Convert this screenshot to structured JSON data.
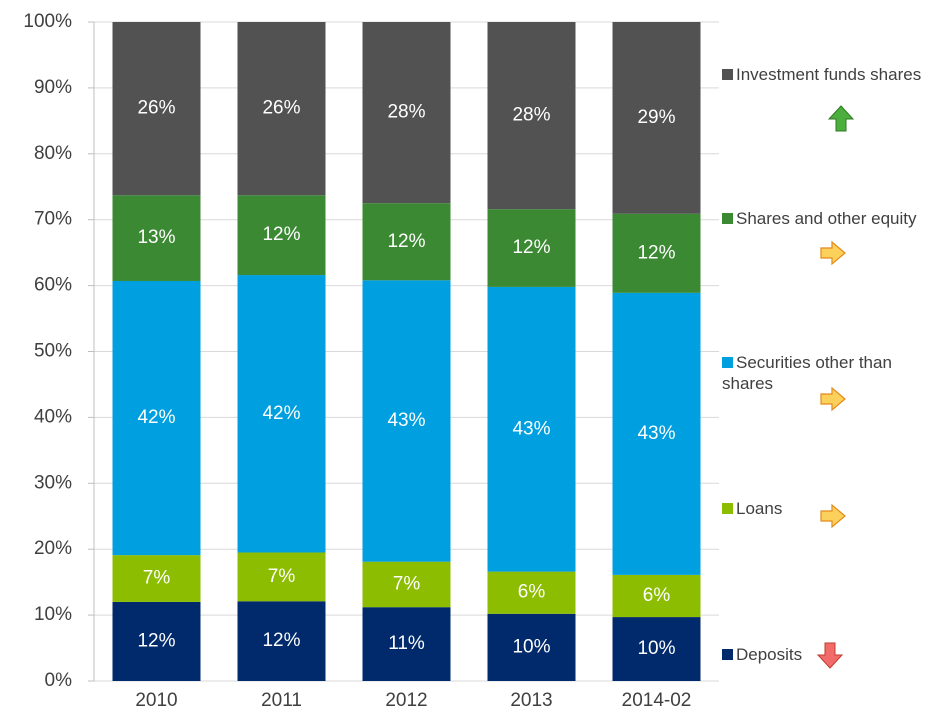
{
  "chart_data": {
    "type": "stacked_bar",
    "categories": [
      "2010",
      "2011",
      "2012",
      "2013",
      "2014-02"
    ],
    "series": [
      {
        "name": "Deposits",
        "color": "#002a6c",
        "values": [
          12.0,
          12.1,
          11.2,
          10.2,
          9.7
        ],
        "value_labels": [
          "12%",
          "12%",
          "11%",
          "10%",
          "10%"
        ]
      },
      {
        "name": "Loans",
        "color": "#8cbd00",
        "values": [
          7.1,
          7.4,
          6.9,
          6.4,
          6.4
        ],
        "value_labels": [
          "7%",
          "7%",
          "7%",
          "6%",
          "6%"
        ]
      },
      {
        "name": "Securities other than shares",
        "color": "#009fdf",
        "values": [
          41.6,
          42.1,
          42.7,
          43.2,
          42.8
        ],
        "value_labels": [
          "42%",
          "42%",
          "43%",
          "43%",
          "43%"
        ]
      },
      {
        "name": "Shares and other equity",
        "color": "#3b8a33",
        "values": [
          13.0,
          12.1,
          11.7,
          11.8,
          12.0
        ],
        "value_labels": [
          "13%",
          "12%",
          "12%",
          "12%",
          "12%"
        ]
      },
      {
        "name": "Investment funds shares",
        "color": "#525252",
        "values": [
          26.3,
          26.3,
          27.5,
          28.4,
          29.1
        ],
        "value_labels": [
          "26%",
          "26%",
          "28%",
          "28%",
          "29%"
        ]
      }
    ],
    "ylim": [
      0,
      100
    ],
    "yticks": [
      {
        "value": 0,
        "label": "0%"
      },
      {
        "value": 10,
        "label": "10%"
      },
      {
        "value": 20,
        "label": "20%"
      },
      {
        "value": 30,
        "label": "30%"
      },
      {
        "value": 40,
        "label": "40%"
      },
      {
        "value": 50,
        "label": "50%"
      },
      {
        "value": 60,
        "label": "60%"
      },
      {
        "value": 70,
        "label": "70%"
      },
      {
        "value": 80,
        "label": "80%"
      },
      {
        "value": 90,
        "label": "90%"
      },
      {
        "value": 100,
        "label": "100%"
      }
    ],
    "grid": true
  }
}
